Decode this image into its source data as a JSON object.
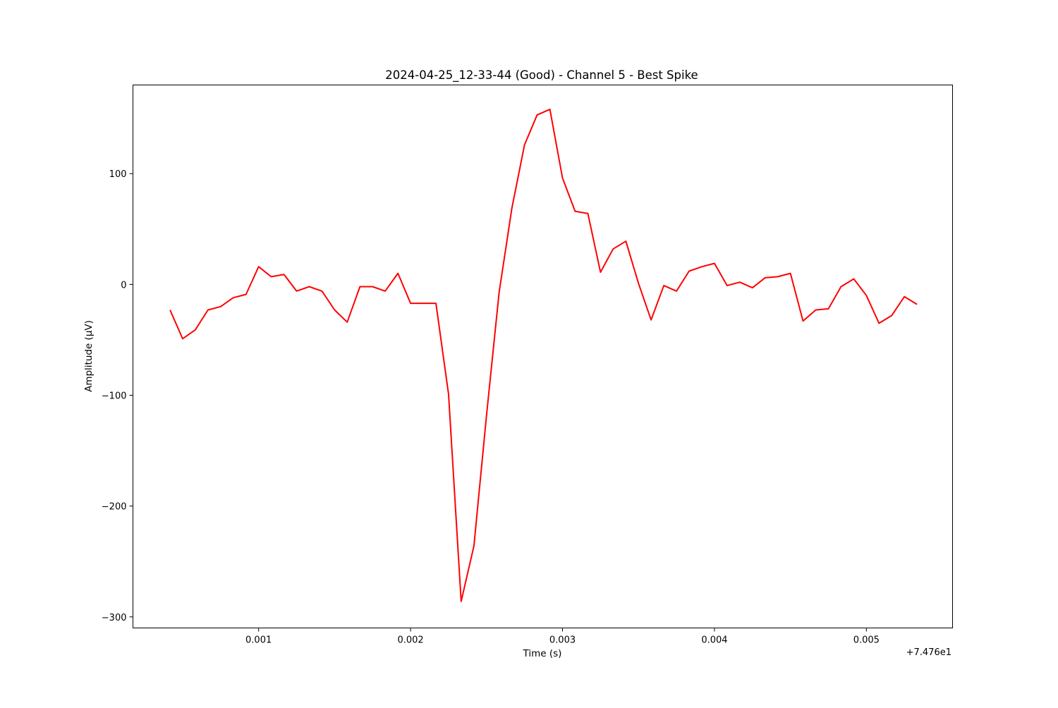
{
  "chart_data": {
    "type": "line",
    "title": "2024-04-25_12-33-44 (Good) - Channel 5 - Best Spike",
    "xlabel": "Time (s)",
    "ylabel": "Amplitude (µV)",
    "x_offset_label": "+7.476e1",
    "xlim": [
      0.000173,
      0.005567
    ],
    "ylim": [
      -310,
      180
    ],
    "xticks": [
      {
        "value": 0.001,
        "label": "0.001"
      },
      {
        "value": 0.002,
        "label": "0.002"
      },
      {
        "value": 0.003,
        "label": "0.003"
      },
      {
        "value": 0.004,
        "label": "0.004"
      },
      {
        "value": 0.005,
        "label": "0.005"
      }
    ],
    "yticks": [
      {
        "value": 100,
        "label": "100"
      },
      {
        "value": 0,
        "label": "0"
      },
      {
        "value": -100,
        "label": "−100"
      },
      {
        "value": -200,
        "label": "−200"
      },
      {
        "value": -300,
        "label": "−300"
      }
    ],
    "grid": false,
    "series": [
      {
        "color": "#ff0000",
        "x": [
          0.000417,
          0.0005,
          0.000583,
          0.000667,
          0.00075,
          0.000833,
          0.000917,
          0.001,
          0.001083,
          0.001167,
          0.00125,
          0.001333,
          0.001417,
          0.0015,
          0.001583,
          0.001667,
          0.00175,
          0.001833,
          0.001917,
          0.002,
          0.002083,
          0.002167,
          0.00225,
          0.002333,
          0.002417,
          0.0025,
          0.002583,
          0.002667,
          0.00275,
          0.002833,
          0.002917,
          0.003,
          0.003083,
          0.003167,
          0.00325,
          0.003333,
          0.003417,
          0.0035,
          0.003583,
          0.003667,
          0.00375,
          0.003833,
          0.003917,
          0.004,
          0.004083,
          0.004167,
          0.00425,
          0.004333,
          0.004417,
          0.0045,
          0.004583,
          0.004667,
          0.00475,
          0.004833,
          0.004917,
          0.005,
          0.005083,
          0.005167,
          0.00525,
          0.005333
        ],
        "y": [
          -23,
          -49,
          -41,
          -23,
          -20,
          -12,
          -9,
          16,
          7,
          9,
          -6,
          -2,
          -6,
          -23,
          -34,
          -2,
          -2,
          -6,
          10,
          -17,
          -17,
          -17,
          -99,
          -286,
          -236,
          -118,
          -7,
          69,
          126,
          153,
          158,
          96,
          66,
          64,
          11,
          32,
          39,
          1,
          -32,
          -1,
          -6,
          12,
          16,
          19,
          -1,
          2,
          -3,
          6,
          7,
          10,
          -33,
          -23,
          -22,
          -2,
          5,
          -10,
          -35,
          -28,
          -11,
          -18
        ]
      }
    ]
  }
}
